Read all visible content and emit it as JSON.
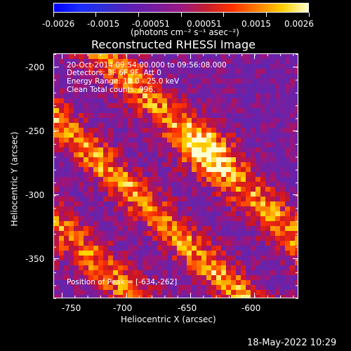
{
  "colorbar": {
    "tick_labels": [
      "-0.0026",
      "-0.0015",
      "-0.00051",
      "0.00051",
      "0.0015",
      "0.0026"
    ],
    "units_label": "(photons cm⁻² s⁻¹ asec⁻²)",
    "range": [
      -0.0026,
      0.0026
    ]
  },
  "plot": {
    "title": "Reconstructed RHESSI Image",
    "xlabel": "Heliocentric X (arcsec)",
    "ylabel": "Heliocentric Y (arcsec)",
    "xticks": [
      "-750",
      "-700",
      "-650",
      "-600"
    ],
    "yticks": [
      "-200",
      "-250",
      "-300",
      "-350"
    ],
    "x_range": [
      -765,
      -570
    ],
    "y_range": [
      -385,
      -190
    ]
  },
  "overlay": {
    "time_range": "20-Oct-2014 09:54:00.000 to 09:56:08.000",
    "detectors": "Detectors: 3F 6F 9F, Att 0",
    "energy_range": "Energy Range: 12.0 - 25.0 keV",
    "clean_counts": "Clean    Total counts: 996.",
    "peak_position": "Position of Peak = [-634,-262]"
  },
  "footer": {
    "timestamp": "18-May-2022 10:29"
  },
  "colors": {
    "background": "#000000",
    "axes": "#ffffff"
  }
}
